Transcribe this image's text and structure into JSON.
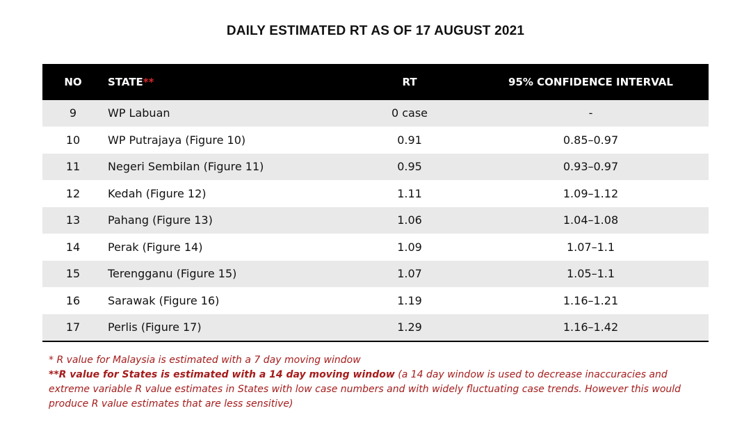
{
  "title": "DAILY ESTIMATED RT AS OF 17 AUGUST 2021",
  "table": {
    "headers": {
      "no": "NO",
      "state": "STATE",
      "state_mark": "**",
      "rt": "RT",
      "ci": "95% CONFIDENCE INTERVAL"
    },
    "rows": [
      {
        "no": "9",
        "state": "WP Labuan",
        "rt": "0 case",
        "ci": "-"
      },
      {
        "no": "10",
        "state": "WP Putrajaya (Figure 10)",
        "rt": "0.91",
        "ci": "0.85–0.97"
      },
      {
        "no": "11",
        "state": "Negeri Sembilan (Figure 11)",
        "rt": "0.95",
        "ci": "0.93–0.97"
      },
      {
        "no": "12",
        "state": "Kedah (Figure 12)",
        "rt": "1.11",
        "ci": "1.09–1.12"
      },
      {
        "no": "13",
        "state": "Pahang (Figure 13)",
        "rt": "1.06",
        "ci": "1.04–1.08"
      },
      {
        "no": "14",
        "state": "Perak (Figure 14)",
        "rt": "1.09",
        "ci": "1.07–1.1"
      },
      {
        "no": "15",
        "state": "Terengganu (Figure 15)",
        "rt": "1.07",
        "ci": "1.05–1.1"
      },
      {
        "no": "16",
        "state": "Sarawak (Figure 16)",
        "rt": "1.19",
        "ci": "1.16–1.21"
      },
      {
        "no": "17",
        "state": "Perlis (Figure 17)",
        "rt": "1.29",
        "ci": "1.16–1.42"
      }
    ]
  },
  "notes": {
    "line1": "*  R value for Malaysia is estimated with a 7 day moving window",
    "line2_bold": "**R value for States is estimated with a 14 day moving window",
    "line2_rest": " (a 14 day window is used to decrease inaccuracies and extreme variable R value estimates in States with low case numbers and with widely fluctuating case trends. However this would produce R value estimates that are less sensitive)"
  },
  "colors": {
    "header_bg": "#000000",
    "row_shade": "#e9e9e9",
    "note_text": "#a51c1c",
    "asterisk": "#d62828"
  }
}
